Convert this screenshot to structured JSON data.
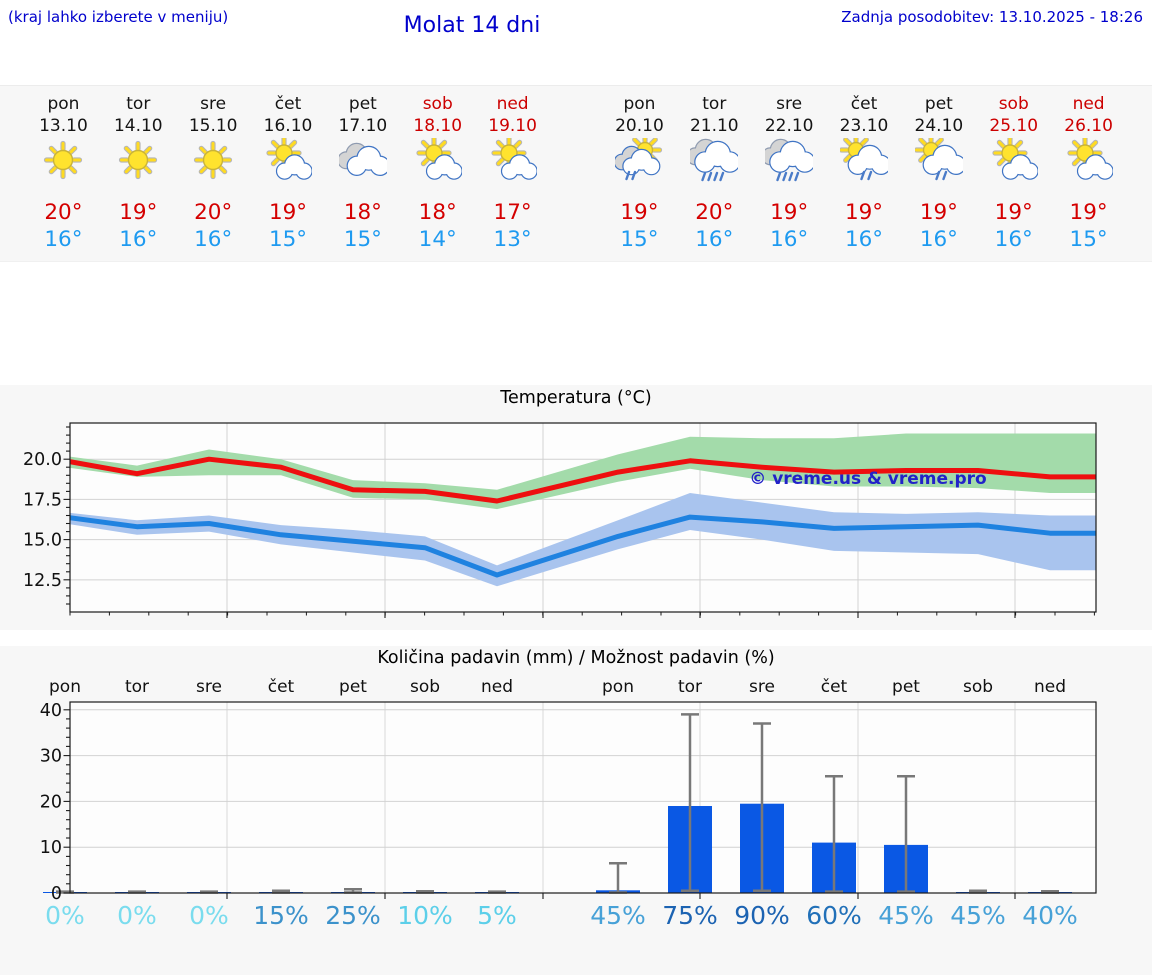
{
  "header": {
    "hint": "(kraj lahko izberete v meniju)",
    "title": "Molat 14 dni",
    "updated": "Zadnja posodobitev: 13.10.2025 - 18:26"
  },
  "colors": {
    "header_blue": "#0000cc",
    "weekend_red": "#cc0000",
    "high_red": "#d40000",
    "low_blue": "#1e9af0",
    "max_line": "#ee0f0f",
    "min_line": "#1f82e0",
    "max_band": "#a3dbaa",
    "min_band": "#a9c4ee",
    "bar_blue": "#0a58e4",
    "whisker_gray": "#787878"
  },
  "forecast_days": [
    {
      "day": "pon",
      "date": "13.10",
      "icon": "sunny",
      "high": "20°",
      "low": "16°",
      "weekend": false
    },
    {
      "day": "tor",
      "date": "14.10",
      "icon": "sunny",
      "high": "19°",
      "low": "16°",
      "weekend": false
    },
    {
      "day": "sre",
      "date": "15.10",
      "icon": "sunny",
      "high": "20°",
      "low": "16°",
      "weekend": false
    },
    {
      "day": "čet",
      "date": "16.10",
      "icon": "partly",
      "high": "19°",
      "low": "15°",
      "weekend": false
    },
    {
      "day": "pet",
      "date": "17.10",
      "icon": "cloudy",
      "high": "18°",
      "low": "15°",
      "weekend": false
    },
    {
      "day": "sob",
      "date": "18.10",
      "icon": "partly",
      "high": "18°",
      "low": "14°",
      "weekend": true
    },
    {
      "day": "ned",
      "date": "19.10",
      "icon": "partly",
      "high": "17°",
      "low": "13°",
      "weekend": true
    },
    {
      "day": "pon",
      "date": "20.10",
      "icon": "sun-rain",
      "high": "19°",
      "low": "15°",
      "weekend": false
    },
    {
      "day": "tor",
      "date": "21.10",
      "icon": "rain",
      "high": "20°",
      "low": "16°",
      "weekend": false
    },
    {
      "day": "sre",
      "date": "22.10",
      "icon": "rain",
      "high": "19°",
      "low": "16°",
      "weekend": false
    },
    {
      "day": "čet",
      "date": "23.10",
      "icon": "sun-shower",
      "high": "19°",
      "low": "16°",
      "weekend": false
    },
    {
      "day": "pet",
      "date": "24.10",
      "icon": "sun-shower",
      "high": "19°",
      "low": "16°",
      "weekend": false
    },
    {
      "day": "sob",
      "date": "25.10",
      "icon": "partly",
      "high": "19°",
      "low": "16°",
      "weekend": true
    },
    {
      "day": "ned",
      "date": "26.10",
      "icon": "partly",
      "high": "19°",
      "low": "15°",
      "weekend": true
    }
  ],
  "chart_data": [
    {
      "type": "line",
      "title": "Temperatura (°C)",
      "categories": [
        "pon 13.10",
        "tor 14.10",
        "sre 15.10",
        "čet 16.10",
        "pet 17.10",
        "sob 18.10",
        "ned 19.10",
        "pon 20.10",
        "tor 21.10",
        "sre 22.10",
        "čet 23.10",
        "pet 24.10",
        "sob 25.10",
        "ned 26.10"
      ],
      "ylim": [
        10.5,
        22.25
      ],
      "yticks": [
        12.5,
        15.0,
        17.5,
        20.0
      ],
      "ytick_labels": [
        "12.5",
        "15.0",
        "17.5",
        "20.0"
      ],
      "grid": true,
      "legend": "none",
      "watermark": "© vreme.us & vreme.pro",
      "series": [
        {
          "name": "max temperature",
          "values": [
            19.9,
            19.1,
            20.0,
            19.5,
            18.1,
            18.0,
            17.4,
            19.2,
            19.9,
            19.5,
            19.2,
            19.3,
            19.3,
            18.9
          ]
        },
        {
          "name": "min temperature",
          "values": [
            16.4,
            15.8,
            16.0,
            15.3,
            14.9,
            14.5,
            12.8,
            15.2,
            16.4,
            16.1,
            15.7,
            15.8,
            15.9,
            15.4
          ]
        }
      ],
      "bands": [
        {
          "name": "max temperature range",
          "upper": [
            20.2,
            19.6,
            20.6,
            20.0,
            18.7,
            18.5,
            18.1,
            20.3,
            21.4,
            21.3,
            21.3,
            21.6,
            21.6,
            21.6
          ],
          "lower": [
            19.5,
            18.9,
            19.0,
            19.0,
            17.6,
            17.5,
            16.9,
            18.6,
            19.4,
            18.7,
            18.3,
            18.3,
            18.2,
            17.9
          ]
        },
        {
          "name": "min temperature range",
          "upper": [
            16.7,
            16.2,
            16.5,
            15.9,
            15.6,
            15.2,
            13.4,
            16.2,
            17.9,
            17.3,
            16.7,
            16.6,
            16.7,
            16.5
          ],
          "lower": [
            16.0,
            15.3,
            15.5,
            14.7,
            14.2,
            13.7,
            12.1,
            14.4,
            15.6,
            15.0,
            14.3,
            14.2,
            14.1,
            13.1
          ]
        }
      ]
    },
    {
      "type": "bar",
      "title": "Količina padavin (mm) / Možnost padavin (%)",
      "categories": [
        "pon",
        "tor",
        "sre",
        "čet",
        "pet",
        "sob",
        "ned",
        "pon",
        "tor",
        "sre",
        "čet",
        "pet",
        "sob",
        "ned"
      ],
      "values": [
        0.15,
        0.15,
        0.15,
        0.15,
        0.15,
        0.15,
        0.15,
        0.6,
        19.0,
        19.5,
        11.0,
        10.5,
        0.15,
        0.15
      ],
      "whisker_top": [
        0.3,
        0.3,
        0.3,
        0.5,
        0.8,
        0.4,
        0.3,
        6.5,
        39.0,
        37.0,
        25.5,
        25.5,
        0.5,
        0.4
      ],
      "whisker_bottom": [
        0.1,
        0.1,
        0.1,
        0.1,
        0.1,
        0.1,
        0.1,
        0.1,
        0.5,
        0.5,
        0.3,
        0.3,
        0.1,
        0.1
      ],
      "ylim": [
        0,
        41.7
      ],
      "yticks": [
        0,
        10,
        20,
        30,
        40
      ],
      "grid": true,
      "probabilities": [
        {
          "label": "0%",
          "color": "#7adcee"
        },
        {
          "label": "0%",
          "color": "#7adcee"
        },
        {
          "label": "0%",
          "color": "#7adcee"
        },
        {
          "label": "15%",
          "color": "#3c92cb"
        },
        {
          "label": "25%",
          "color": "#3c92cb"
        },
        {
          "label": "10%",
          "color": "#5ccfe9"
        },
        {
          "label": "5%",
          "color": "#5ccfe9"
        },
        {
          "label": "45%",
          "color": "#47a1d7"
        },
        {
          "label": "75%",
          "color": "#1c63b2"
        },
        {
          "label": "90%",
          "color": "#1c63b2"
        },
        {
          "label": "60%",
          "color": "#2170b8"
        },
        {
          "label": "45%",
          "color": "#47a1d7"
        },
        {
          "label": "45%",
          "color": "#47a1d7"
        },
        {
          "label": "40%",
          "color": "#47a1d7"
        }
      ]
    }
  ]
}
